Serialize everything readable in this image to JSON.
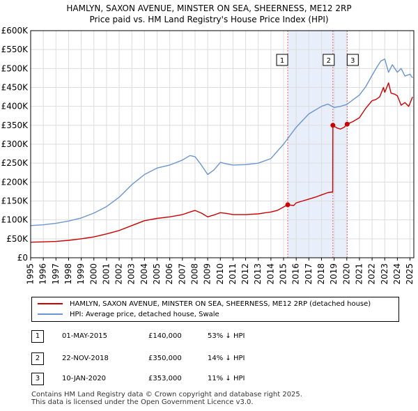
{
  "title_line1": "HAMLYN, SAXON AVENUE, MINSTER ON SEA, SHEERNESS, ME12 2RP",
  "title_line2": "Price paid vs. HM Land Registry's House Price Index (HPI)",
  "colors": {
    "property": "#cc0000",
    "hpi": "#6a95d0",
    "shade": "#e8eefa",
    "marker_line": "#e06666"
  },
  "chart_data": {
    "type": "line",
    "title": "Price paid vs. HM Land Registry's House Price Index (HPI)",
    "xlabel": "",
    "ylabel": "",
    "xlim": [
      1995,
      2025.3
    ],
    "ylim": [
      0,
      600000
    ],
    "y_ticks": [
      {
        "value": 0,
        "label": "£0"
      },
      {
        "value": 50000,
        "label": "£50K"
      },
      {
        "value": 100000,
        "label": "£100K"
      },
      {
        "value": 150000,
        "label": "£150K"
      },
      {
        "value": 200000,
        "label": "£200K"
      },
      {
        "value": 250000,
        "label": "£250K"
      },
      {
        "value": 300000,
        "label": "£300K"
      },
      {
        "value": 350000,
        "label": "£350K"
      },
      {
        "value": 400000,
        "label": "£400K"
      },
      {
        "value": 450000,
        "label": "£450K"
      },
      {
        "value": 500000,
        "label": "£500K"
      },
      {
        "value": 550000,
        "label": "£550K"
      },
      {
        "value": 600000,
        "label": "£600K"
      }
    ],
    "x_ticks": [
      1995,
      1996,
      1997,
      1998,
      1999,
      2000,
      2001,
      2002,
      2003,
      2004,
      2005,
      2006,
      2007,
      2008,
      2009,
      2010,
      2011,
      2012,
      2013,
      2014,
      2015,
      2016,
      2017,
      2018,
      2019,
      2020,
      2021,
      2022,
      2023,
      2024,
      2025
    ],
    "grid": true,
    "shaded_range": [
      2015.33,
      2020.03
    ],
    "series": [
      {
        "name": "HAMLYN, SAXON AVENUE, MINSTER ON SEA, SHEERNESS, ME12 2RP (detached house)",
        "x": [
          1995,
          1996,
          1997,
          1998,
          1999,
          2000,
          2001,
          2002,
          2003,
          2004,
          2005,
          2006,
          2007,
          2007.6,
          2008,
          2008.5,
          2009,
          2009.5,
          2010,
          2010.5,
          2011,
          2012,
          2013,
          2014,
          2014.5,
          2015.33,
          2015.8,
          2016,
          2016.5,
          2017,
          2017.5,
          2018,
          2018.5,
          2018.89,
          2018.9,
          2019.2,
          2019.5,
          2019.8,
          2020.03,
          2020.5,
          2021,
          2021.5,
          2022,
          2022.3,
          2022.6,
          2022.9,
          2023,
          2023.3,
          2023.5,
          2023.8,
          2024,
          2024.3,
          2024.6,
          2024.9,
          2025.2
        ],
        "values": [
          41000,
          42000,
          43000,
          46000,
          50000,
          55000,
          63000,
          72000,
          85000,
          98000,
          104000,
          108000,
          114000,
          121000,
          125000,
          118000,
          108000,
          113000,
          119000,
          117000,
          114000,
          114000,
          116000,
          121000,
          125000,
          140000,
          138000,
          145000,
          150000,
          155000,
          160000,
          166000,
          172000,
          174000,
          350000,
          343000,
          340000,
          345000,
          353000,
          360000,
          370000,
          395000,
          415000,
          418000,
          425000,
          450000,
          437000,
          462000,
          435000,
          432000,
          428000,
          403000,
          410000,
          400000,
          425000
        ]
      },
      {
        "name": "HPI: Average price, detached house, Swale",
        "x": [
          1995,
          1996,
          1997,
          1998,
          1999,
          2000,
          2001,
          2002,
          2003,
          2004,
          2005,
          2006,
          2007,
          2007.6,
          2008,
          2008.5,
          2009,
          2009.5,
          2010,
          2010.5,
          2011,
          2012,
          2013,
          2014,
          2015,
          2016,
          2017,
          2018,
          2018.5,
          2019,
          2019.5,
          2020,
          2021,
          2021.5,
          2022,
          2022.4,
          2022.7,
          2023,
          2023.3,
          2023.6,
          2024,
          2024.3,
          2024.6,
          2025,
          2025.2
        ],
        "values": [
          85000,
          87000,
          91000,
          97000,
          105000,
          118000,
          135000,
          160000,
          193000,
          220000,
          237000,
          245000,
          258000,
          270000,
          267000,
          245000,
          220000,
          232000,
          252000,
          248000,
          245000,
          246000,
          250000,
          262000,
          300000,
          345000,
          380000,
          400000,
          406000,
          397000,
          400000,
          405000,
          430000,
          452000,
          482000,
          505000,
          520000,
          525000,
          490000,
          510000,
          490000,
          500000,
          480000,
          485000,
          475000
        ]
      }
    ],
    "transactions": [
      {
        "label": "1",
        "x": 2015.33,
        "value": 140000
      },
      {
        "label": "2",
        "x": 2018.9,
        "value": 350000
      },
      {
        "label": "3",
        "x": 2020.03,
        "value": 353000
      }
    ]
  },
  "legend": {
    "property_label": "HAMLYN, SAXON AVENUE, MINSTER ON SEA, SHEERNESS, ME12 2RP (detached house)",
    "hpi_label": "HPI: Average price, detached house, Swale"
  },
  "table": [
    {
      "num": "1",
      "date": "01-MAY-2015",
      "price": "£140,000",
      "hpi": "53% ↓ HPI"
    },
    {
      "num": "2",
      "date": "22-NOV-2018",
      "price": "£350,000",
      "hpi": "14% ↓ HPI"
    },
    {
      "num": "3",
      "date": "10-JAN-2020",
      "price": "£353,000",
      "hpi": "11% ↓ HPI"
    }
  ],
  "footer_line1": "Contains HM Land Registry data © Crown copyright and database right 2025.",
  "footer_line2": "This data is licensed under the Open Government Licence v3.0."
}
